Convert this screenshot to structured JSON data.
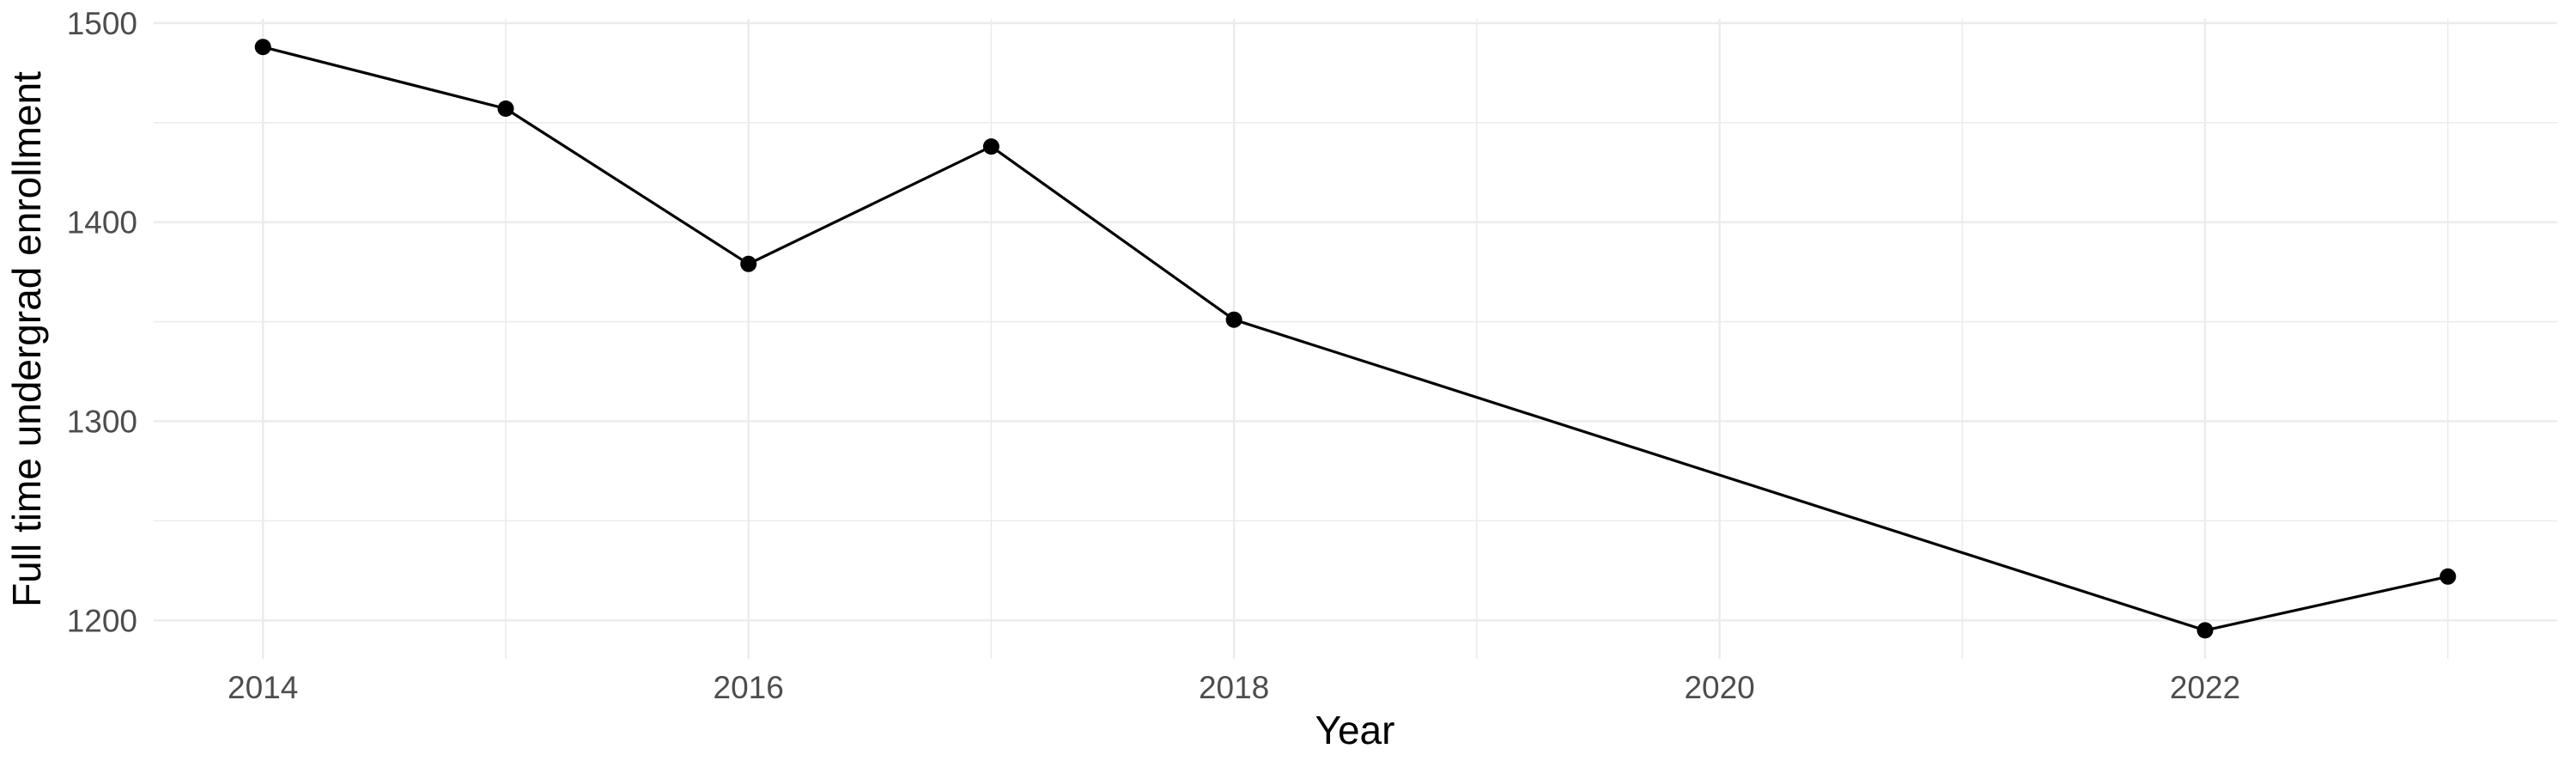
{
  "chart_data": {
    "type": "line",
    "title": "",
    "xlabel": "Year",
    "ylabel": "Full time undergrad enrollment",
    "x": [
      2014,
      2015,
      2016,
      2017,
      2018,
      2022,
      2023
    ],
    "series": [
      {
        "name": "Full time undergrad enrollment",
        "values": [
          1488,
          1457,
          1379,
          1438,
          1351,
          1195,
          1222
        ]
      }
    ],
    "x_major_ticks": [
      2014,
      2016,
      2018,
      2020,
      2022
    ],
    "x_minor_ticks": [
      2015,
      2017,
      2019,
      2021,
      2023
    ],
    "y_major_ticks": [
      1200,
      1300,
      1400,
      1500
    ],
    "y_minor_ticks": [
      1250,
      1350,
      1450
    ],
    "xlim": [
      2013.55,
      2023.45
    ],
    "ylim": [
      1180.7,
      1502.1
    ],
    "grid": true,
    "legend_position": "none",
    "marker": "point",
    "style": {
      "background_color": "#FFFFFF",
      "line_color": "#000000",
      "point_color": "#000000",
      "grid_color": "#EBEBEB",
      "tick_label_color": "#4D4D4D",
      "axis_title_color": "#000000"
    }
  }
}
